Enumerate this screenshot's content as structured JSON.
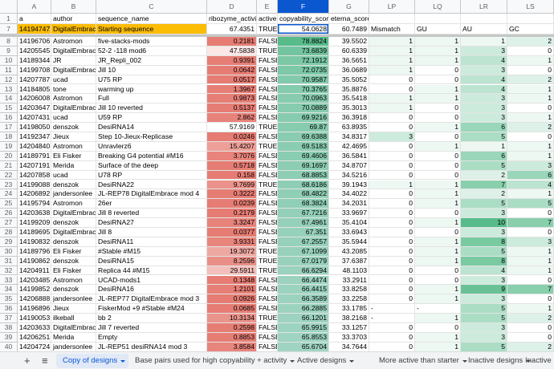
{
  "columns": [
    "A",
    "B",
    "C",
    "D",
    "E",
    "F",
    "G",
    "LP",
    "LQ",
    "LR",
    "LS"
  ],
  "header_row": {
    "number": 1,
    "cells": [
      "a",
      "author",
      "sequence_name",
      "ribozyme_activity",
      "active",
      "copyability_score",
      "eterna_score",
      null,
      null,
      null,
      null
    ]
  },
  "rows": [
    {
      "number": 7,
      "cells": [
        14194747,
        "DigitalEmbrace",
        "Starting sequence",
        67.4351,
        "TRUE",
        54.0628,
        60.7489,
        "Mismatch",
        "GU",
        "AU",
        "GC"
      ]
    },
    {
      "number": 8,
      "cells": [
        14196706,
        "Astromon",
        "five-stacks-mods",
        0.2181,
        "FALSE",
        78.8824,
        39.5502,
        1,
        1,
        1,
        2
      ]
    },
    {
      "number": 9,
      "cells": [
        14205545,
        "DigitalEmbrace",
        "52-2 -118 mod6",
        47.5838,
        "TRUE",
        73.6839,
        60.6339,
        1,
        1,
        3,
        0
      ]
    },
    {
      "number": 10,
      "cells": [
        14189344,
        "JR",
        "JR_Repli_002",
        0.9391,
        "FALSE",
        72.1912,
        36.5651,
        1,
        1,
        4,
        1
      ]
    },
    {
      "number": 11,
      "cells": [
        14199708,
        "DigitalEmbrace",
        "Jill 10",
        0.0642,
        "FALSE",
        72.0735,
        36.0689,
        1,
        0,
        3,
        0
      ]
    },
    {
      "number": 12,
      "cells": [
        14207787,
        "ucad",
        "U75 RP",
        0.0517,
        "FALSE",
        70.9587,
        35.5052,
        0,
        0,
        4,
        2
      ]
    },
    {
      "number": 13,
      "cells": [
        14184805,
        "tone",
        "warming up",
        1.3967,
        "FALSE",
        70.3765,
        35.8876,
        0,
        1,
        4,
        1
      ]
    },
    {
      "number": 14,
      "cells": [
        14206008,
        "Astromon",
        "Full",
        0.9873,
        "FALSE",
        70.0963,
        35.5418,
        1,
        1,
        3,
        1
      ]
    },
    {
      "number": 15,
      "cells": [
        14203647,
        "DigitalEmbrace",
        "Jill 10 reverted",
        0.5137,
        "FALSE",
        70.0889,
        35.3013,
        1,
        0,
        3,
        0
      ]
    },
    {
      "number": 16,
      "cells": [
        14207431,
        "ucad",
        "U59 RP",
        2.862,
        "FALSE",
        69.9216,
        36.3918,
        0,
        0,
        3,
        1
      ]
    },
    {
      "number": 17,
      "cells": [
        14198050,
        "denszok",
        "DesiRNA14",
        57.9169,
        "TRUE",
        69.87,
        63.8935,
        0,
        1,
        6,
        2
      ]
    },
    {
      "number": 18,
      "cells": [
        14192347,
        "Jieux",
        "Step 10-Jieux-Replicase",
        0.0246,
        "FALSE",
        69.6388,
        34.8317,
        3,
        0,
        5,
        0
      ]
    },
    {
      "number": 19,
      "cells": [
        14204840,
        "Astromon",
        "Unravlerz6",
        15.4207,
        "TRUE",
        69.5183,
        42.4695,
        0,
        1,
        1,
        1
      ]
    },
    {
      "number": 20,
      "cells": [
        14189791,
        "Eli Fisker",
        "Breaking G4 potential #M16",
        3.7076,
        "FALSE",
        69.4606,
        36.5841,
        0,
        0,
        6,
        1
      ]
    },
    {
      "number": 21,
      "cells": [
        14207191,
        "Merida",
        "Surface of the deep",
        0.5718,
        "FALSE",
        69.1697,
        34.8707,
        0,
        0,
        5,
        3
      ]
    },
    {
      "number": 22,
      "cells": [
        14207858,
        "ucad",
        "U78 RP",
        0.158,
        "FALSE",
        68.8853,
        34.5216,
        0,
        0,
        2,
        6
      ]
    },
    {
      "number": 23,
      "cells": [
        14199088,
        "denszok",
        "DesiRNA22",
        9.7699,
        "TRUE",
        68.6186,
        39.1943,
        1,
        1,
        7,
        4
      ]
    },
    {
      "number": 24,
      "cells": [
        14206892,
        "jandersonlee",
        "JL-REP78 DigitalEmbrace mod 4",
        0.3222,
        "FALSE",
        68.4822,
        34.4022,
        0,
        1,
        2,
        1
      ]
    },
    {
      "number": 25,
      "cells": [
        14195794,
        "Astromon",
        "26er",
        0.0239,
        "FALSE",
        68.3824,
        34.2031,
        0,
        1,
        5,
        5
      ]
    },
    {
      "number": 26,
      "cells": [
        14203638,
        "DigitalEmbrace",
        "Jill 8 reverted",
        0.2179,
        "FALSE",
        67.7216,
        33.9697,
        0,
        0,
        3,
        0
      ]
    },
    {
      "number": 27,
      "cells": [
        14199209,
        "denszok",
        "DesiRNA27",
        3.3247,
        "FALSE",
        67.4961,
        35.4104,
        0,
        1,
        10,
        7
      ]
    },
    {
      "number": 28,
      "cells": [
        14189695,
        "DigitalEmbrace",
        "Jill 8",
        0.0377,
        "FALSE",
        67.351,
        33.6943,
        0,
        0,
        3,
        0
      ]
    },
    {
      "number": 29,
      "cells": [
        14190832,
        "denszok",
        "DesiRNA11",
        3.9331,
        "FALSE",
        67.2557,
        35.5944,
        0,
        1,
        8,
        3
      ]
    },
    {
      "number": 30,
      "cells": [
        14189796,
        "Eli Fisker",
        "#Stable #M15",
        19.3072,
        "TRUE",
        67.1099,
        43.2085,
        0,
        1,
        5,
        1
      ]
    },
    {
      "number": 31,
      "cells": [
        14190862,
        "denszok",
        "DesiRNA15",
        8.2596,
        "TRUE",
        67.0179,
        37.6387,
        0,
        1,
        8,
        1
      ]
    },
    {
      "number": 32,
      "cells": [
        14204911,
        "Eli Fisker",
        "Replica 44 #M15",
        29.5911,
        "TRUE",
        66.6294,
        48.1103,
        0,
        0,
        4,
        1
      ]
    },
    {
      "number": 33,
      "cells": [
        14203485,
        "Astromon",
        "UCAD-mods1",
        0.1348,
        "FALSE",
        66.4474,
        33.2911,
        0,
        0,
        3,
        0
      ]
    },
    {
      "number": 34,
      "cells": [
        14199852,
        "denszok",
        "DesiRNA16",
        1.2101,
        "FALSE",
        66.4415,
        33.8258,
        0,
        1,
        9,
        7
      ]
    },
    {
      "number": 35,
      "cells": [
        14206888,
        "jandersonlee",
        "JL-REP77 DigitalEmbrace mod 3",
        0.0926,
        "FALSE",
        66.3589,
        33.2258,
        0,
        1,
        3,
        0
      ]
    },
    {
      "number": 36,
      "cells": [
        14196896,
        "Jieux",
        "FiskerMod +9 #Stable #M24",
        0.0685,
        "FALSE",
        66.2885,
        33.1785,
        "-",
        "-",
        5,
        1
      ]
    },
    {
      "number": 37,
      "cells": [
        14190053,
        "ilkeball",
        "bb 2",
        10.3134,
        "TRUE",
        66.1201,
        38.2168,
        "-",
        1,
        5,
        2
      ]
    },
    {
      "number": 38,
      "cells": [
        14203633,
        "DigitalEmbrace",
        "Jill 7 reverted",
        0.2598,
        "FALSE",
        65.9915,
        33.1257,
        0,
        0,
        3,
        0
      ]
    },
    {
      "number": 39,
      "cells": [
        14206251,
        "Merida",
        "Empty",
        0.8853,
        "FALSE",
        65.8553,
        33.3703,
        0,
        1,
        3,
        0
      ]
    },
    {
      "number": 40,
      "cells": [
        14204724,
        "jandersonlee",
        "JL-REP51 desiRNA14 mod 3",
        3.8584,
        "FALSE",
        65.6704,
        34.7644,
        0,
        1,
        5,
        2
      ]
    }
  ],
  "tabs": [
    "Copy of designs",
    "Base pairs used for high copyability + activity",
    "Active designs",
    "More active than starter",
    "Inactive designs",
    "Inactive"
  ]
}
